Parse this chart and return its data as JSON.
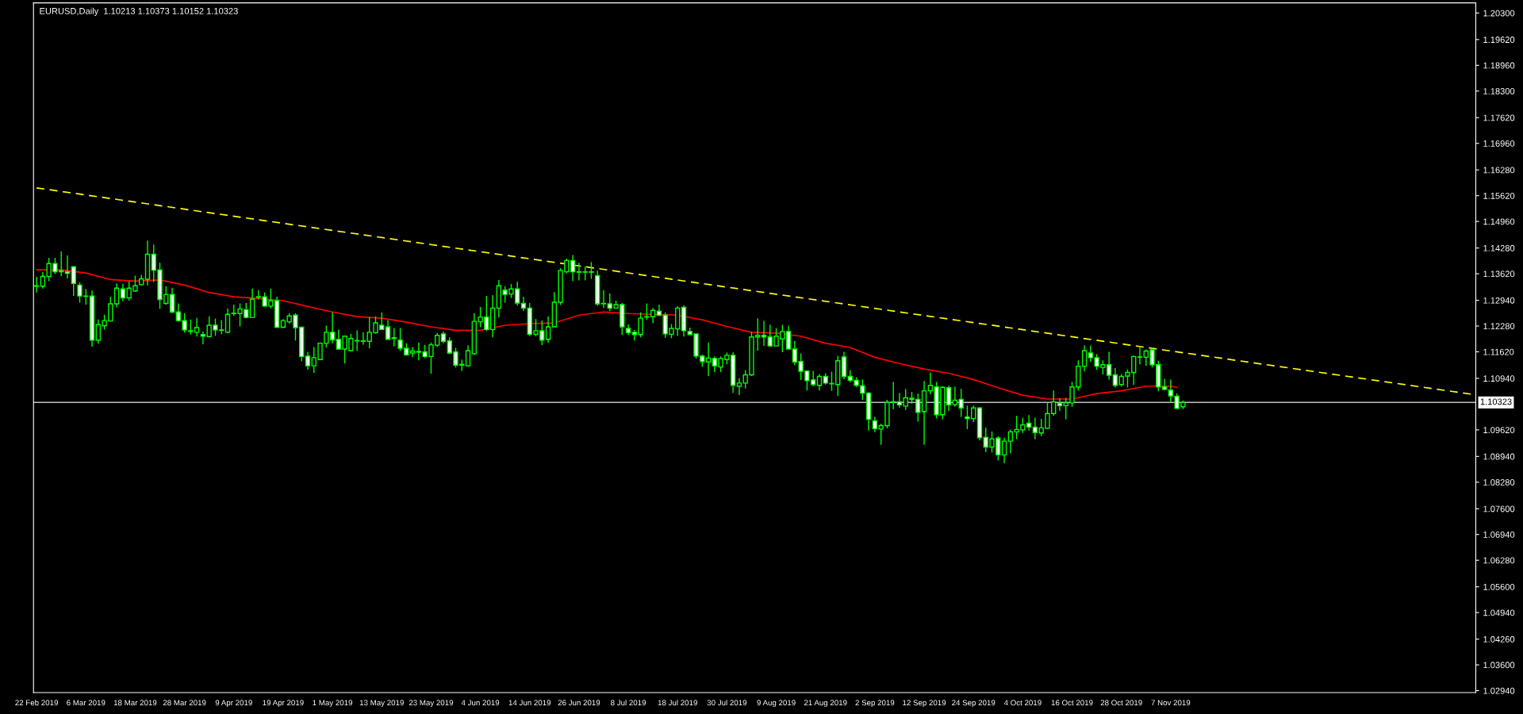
{
  "chart_data": {
    "type": "candlestick",
    "title": "EURUSD,Daily  1.10213 1.10373 1.10152 1.10323",
    "color": "#00ff00",
    "categories": [
      "22 Feb 2019",
      null,
      null,
      null,
      null,
      null,
      null,
      null,
      "6 Mar 2019",
      null,
      null,
      null,
      null,
      null,
      null,
      null,
      "18 Mar 2019",
      null,
      null,
      null,
      null,
      null,
      null,
      null,
      "28 Mar 2019",
      null,
      null,
      null,
      null,
      null,
      null,
      null,
      "9 Apr 2019",
      null,
      null,
      null,
      null,
      null,
      null,
      null,
      "19 Apr 2019",
      null,
      null,
      null,
      null,
      null,
      null,
      null,
      "1 May 2019",
      null,
      null,
      null,
      null,
      null,
      null,
      null,
      "13 May 2019",
      null,
      null,
      null,
      null,
      null,
      null,
      null,
      "23 May 2019",
      null,
      null,
      null,
      null,
      null,
      null,
      null,
      "4 Jun 2019",
      null,
      null,
      null,
      null,
      null,
      null,
      null,
      "14 Jun 2019",
      null,
      null,
      null,
      null,
      null,
      null,
      null,
      "26 Jun 2019",
      null,
      null,
      null,
      null,
      null,
      null,
      null,
      "8 Jul 2019",
      null,
      null,
      null,
      null,
      null,
      null,
      null,
      "18 Jul 2019",
      null,
      null,
      null,
      null,
      null,
      null,
      null,
      "30 Jul 2019",
      null,
      null,
      null,
      null,
      null,
      null,
      null,
      "9 Aug 2019",
      null,
      null,
      null,
      null,
      null,
      null,
      null,
      "21 Aug 2019",
      null,
      null,
      null,
      null,
      null,
      null,
      null,
      "2 Sep 2019",
      null,
      null,
      null,
      null,
      null,
      null,
      null,
      "12 Sep 2019",
      null,
      null,
      null,
      null,
      null,
      null,
      null,
      "24 Sep 2019",
      null,
      null,
      null,
      null,
      null,
      null,
      null,
      "4 Oct 2019",
      null,
      null,
      null,
      null,
      null,
      null,
      null,
      "16 Oct 2019",
      null,
      null,
      null,
      null,
      null,
      null,
      null,
      "28 Oct 2019",
      null,
      null,
      null,
      null,
      null,
      null,
      null,
      "7 Nov 2019",
      null,
      null,
      null,
      null,
      null,
      null,
      null,
      null,
      null,
      null,
      null,
      null,
      null,
      null,
      null,
      null,
      null,
      null,
      null,
      null,
      null,
      null,
      null,
      null,
      null,
      null,
      null,
      null,
      null,
      null,
      null,
      null,
      null,
      null,
      null,
      null,
      null,
      null,
      null,
      null,
      null,
      null,
      null,
      null,
      null,
      null,
      null,
      null,
      null
    ],
    "ohlc": [
      [
        1.133,
        1.1354,
        1.1314,
        1.1331
      ],
      [
        1.133,
        1.1366,
        1.1324,
        1.1355
      ],
      [
        1.1355,
        1.1403,
        1.1343,
        1.1388
      ],
      [
        1.1388,
        1.1403,
        1.1361,
        1.1367
      ],
      [
        1.137,
        1.1419,
        1.1356,
        1.1367
      ],
      [
        1.1367,
        1.1409,
        1.135,
        1.1363
      ],
      [
        1.138,
        1.1381,
        1.1305,
        1.1337
      ],
      [
        1.1333,
        1.134,
        1.1288,
        1.1305
      ],
      [
        1.1305,
        1.1323,
        1.1283,
        1.1304
      ],
      [
        1.1305,
        1.1319,
        1.1175,
        1.1192
      ],
      [
        1.1192,
        1.1245,
        1.1183,
        1.1232
      ],
      [
        1.1229,
        1.1257,
        1.1219,
        1.1242
      ],
      [
        1.1241,
        1.1303,
        1.1241,
        1.1285
      ],
      [
        1.1285,
        1.1337,
        1.1276,
        1.1325
      ],
      [
        1.1323,
        1.1336,
        1.1292,
        1.13
      ],
      [
        1.13,
        1.1343,
        1.1293,
        1.1325
      ],
      [
        1.1318,
        1.1357,
        1.1316,
        1.1331
      ],
      [
        1.1334,
        1.1359,
        1.1332,
        1.1349
      ],
      [
        1.1348,
        1.1447,
        1.1332,
        1.1412
      ],
      [
        1.1412,
        1.1437,
        1.1341,
        1.1371
      ],
      [
        1.1372,
        1.139,
        1.1272,
        1.1296
      ],
      [
        1.1286,
        1.133,
        1.1283,
        1.1309
      ],
      [
        1.1309,
        1.1326,
        1.1261,
        1.1264
      ],
      [
        1.1264,
        1.1286,
        1.1239,
        1.1242
      ],
      [
        1.1242,
        1.1261,
        1.1211,
        1.1218
      ],
      [
        1.1216,
        1.1245,
        1.1206,
        1.1214
      ],
      [
        1.1212,
        1.1249,
        1.1201,
        1.1224
      ],
      [
        1.1206,
        1.1214,
        1.1181,
        1.1202
      ],
      [
        1.1201,
        1.1253,
        1.1199,
        1.123
      ],
      [
        1.123,
        1.1247,
        1.1203,
        1.1218
      ],
      [
        1.1218,
        1.1243,
        1.1207,
        1.1217
      ],
      [
        1.1212,
        1.1273,
        1.1209,
        1.1258
      ],
      [
        1.126,
        1.1283,
        1.1254,
        1.1261
      ],
      [
        1.126,
        1.1286,
        1.1227,
        1.1272
      ],
      [
        1.127,
        1.1287,
        1.1248,
        1.125
      ],
      [
        1.125,
        1.1324,
        1.125,
        1.1297
      ],
      [
        1.1302,
        1.132,
        1.1296,
        1.1303
      ],
      [
        1.1303,
        1.1314,
        1.1279,
        1.1279
      ],
      [
        1.1279,
        1.1324,
        1.1273,
        1.1293
      ],
      [
        1.1293,
        1.1303,
        1.1223,
        1.1225
      ],
      [
        1.1225,
        1.1246,
        1.1223,
        1.1242
      ],
      [
        1.1239,
        1.1261,
        1.1234,
        1.1254
      ],
      [
        1.1256,
        1.1261,
        1.1191,
        1.1224
      ],
      [
        1.1225,
        1.1227,
        1.1138,
        1.115
      ],
      [
        1.1151,
        1.1162,
        1.1116,
        1.1126
      ],
      [
        1.1126,
        1.1174,
        1.1108,
        1.1147
      ],
      [
        1.1142,
        1.1186,
        1.1142,
        1.1184
      ],
      [
        1.1184,
        1.1229,
        1.1173,
        1.1212
      ],
      [
        1.1212,
        1.1263,
        1.1184,
        1.1193
      ],
      [
        1.1194,
        1.1219,
        1.1169,
        1.1169
      ],
      [
        1.1169,
        1.1204,
        1.1132,
        1.1202
      ],
      [
        1.1165,
        1.1208,
        1.1163,
        1.1196
      ],
      [
        1.119,
        1.1217,
        1.1165,
        1.1191
      ],
      [
        1.1189,
        1.1212,
        1.118,
        1.119
      ],
      [
        1.1189,
        1.1251,
        1.1171,
        1.1212
      ],
      [
        1.1211,
        1.1253,
        1.1208,
        1.1236
      ],
      [
        1.123,
        1.1263,
        1.1219,
        1.1219
      ],
      [
        1.1226,
        1.1243,
        1.1194,
        1.1194
      ],
      [
        1.1198,
        1.1223,
        1.1176,
        1.1196
      ],
      [
        1.1192,
        1.1223,
        1.1165,
        1.1171
      ],
      [
        1.1171,
        1.1184,
        1.1152,
        1.1154
      ],
      [
        1.1159,
        1.1174,
        1.1148,
        1.1164
      ],
      [
        1.1161,
        1.1186,
        1.114,
        1.1163
      ],
      [
        1.1162,
        1.118,
        1.1146,
        1.115
      ],
      [
        1.115,
        1.1186,
        1.1106,
        1.118
      ],
      [
        1.1179,
        1.121,
        1.1174,
        1.1204
      ],
      [
        1.1208,
        1.1214,
        1.1184,
        1.1189
      ],
      [
        1.119,
        1.1199,
        1.1156,
        1.1159
      ],
      [
        1.1162,
        1.1172,
        1.1122,
        1.1128
      ],
      [
        1.113,
        1.1142,
        1.1113,
        1.1128
      ],
      [
        1.1126,
        1.1178,
        1.1124,
        1.1165
      ],
      [
        1.1157,
        1.1261,
        1.1154,
        1.124
      ],
      [
        1.1239,
        1.1277,
        1.1225,
        1.1251
      ],
      [
        1.1251,
        1.1305,
        1.1215,
        1.1219
      ],
      [
        1.1219,
        1.1307,
        1.1199,
        1.1274
      ],
      [
        1.1274,
        1.1346,
        1.125,
        1.1331
      ],
      [
        1.132,
        1.133,
        1.1288,
        1.1309
      ],
      [
        1.131,
        1.1336,
        1.13,
        1.1323
      ],
      [
        1.1323,
        1.1342,
        1.1281,
        1.1287
      ],
      [
        1.1286,
        1.1303,
        1.1266,
        1.1274
      ],
      [
        1.1274,
        1.1287,
        1.1202,
        1.1207
      ],
      [
        1.1207,
        1.1246,
        1.1202,
        1.1216
      ],
      [
        1.1216,
        1.1242,
        1.1179,
        1.1192
      ],
      [
        1.1194,
        1.1253,
        1.1185,
        1.1226
      ],
      [
        1.1226,
        1.1315,
        1.1226,
        1.1289
      ],
      [
        1.1289,
        1.1376,
        1.1282,
        1.137
      ],
      [
        1.1367,
        1.1401,
        1.1363,
        1.1396
      ],
      [
        1.1396,
        1.141,
        1.1343,
        1.1367
      ],
      [
        1.1367,
        1.139,
        1.1345,
        1.1366
      ],
      [
        1.1366,
        1.1381,
        1.1345,
        1.1367
      ],
      [
        1.1367,
        1.1392,
        1.1349,
        1.1366
      ],
      [
        1.1357,
        1.137,
        1.128,
        1.1285
      ],
      [
        1.1286,
        1.132,
        1.1274,
        1.1285
      ],
      [
        1.1285,
        1.1312,
        1.1266,
        1.1274
      ],
      [
        1.1274,
        1.1293,
        1.1272,
        1.1283
      ],
      [
        1.1283,
        1.1287,
        1.1205,
        1.1226
      ],
      [
        1.1222,
        1.1232,
        1.1205,
        1.1211
      ],
      [
        1.1212,
        1.1218,
        1.1191,
        1.1206
      ],
      [
        1.1206,
        1.1263,
        1.1199,
        1.1248
      ],
      [
        1.1252,
        1.1286,
        1.1244,
        1.1251
      ],
      [
        1.1252,
        1.1274,
        1.1235,
        1.1268
      ],
      [
        1.1266,
        1.1283,
        1.1253,
        1.1256
      ],
      [
        1.1256,
        1.1263,
        1.1198,
        1.1208
      ],
      [
        1.1207,
        1.1233,
        1.1197,
        1.1222
      ],
      [
        1.1221,
        1.1279,
        1.1203,
        1.1274
      ],
      [
        1.1276,
        1.1281,
        1.1201,
        1.1216
      ],
      [
        1.1214,
        1.1224,
        1.1205,
        1.1206
      ],
      [
        1.1208,
        1.1208,
        1.1145,
        1.1151
      ],
      [
        1.1151,
        1.1155,
        1.1124,
        1.1137
      ],
      [
        1.1136,
        1.1186,
        1.11,
        1.1146
      ],
      [
        1.1145,
        1.115,
        1.111,
        1.1126
      ],
      [
        1.1123,
        1.115,
        1.111,
        1.1145
      ],
      [
        1.1142,
        1.116,
        1.113,
        1.1153
      ],
      [
        1.1153,
        1.1161,
        1.1057,
        1.1076
      ],
      [
        1.1074,
        1.1095,
        1.1051,
        1.1082
      ],
      [
        1.1082,
        1.1115,
        1.1068,
        1.1103
      ],
      [
        1.1103,
        1.1213,
        1.11,
        1.12
      ],
      [
        1.12,
        1.1248,
        1.1165,
        1.1204
      ],
      [
        1.1204,
        1.1241,
        1.1177,
        1.12
      ],
      [
        1.12,
        1.1231,
        1.1175,
        1.1177
      ],
      [
        1.1177,
        1.1223,
        1.1177,
        1.1202
      ],
      [
        1.1195,
        1.1231,
        1.1161,
        1.1214
      ],
      [
        1.1214,
        1.1229,
        1.1169,
        1.1169
      ],
      [
        1.1169,
        1.119,
        1.1128,
        1.1136
      ],
      [
        1.1137,
        1.1158,
        1.109,
        1.1112
      ],
      [
        1.1113,
        1.1113,
        1.1063,
        1.1088
      ],
      [
        1.109,
        1.1113,
        1.1074,
        1.1078
      ],
      [
        1.1076,
        1.1105,
        1.1063,
        1.1099
      ],
      [
        1.1099,
        1.1107,
        1.1078,
        1.1082
      ],
      [
        1.1081,
        1.1111,
        1.1062,
        1.108
      ],
      [
        1.1078,
        1.1152,
        1.1049,
        1.1139
      ],
      [
        1.1149,
        1.1162,
        1.1092,
        1.1099
      ],
      [
        1.1099,
        1.1115,
        1.1084,
        1.1089
      ],
      [
        1.1089,
        1.1097,
        1.1072,
        1.1076
      ],
      [
        1.1075,
        1.1091,
        1.1039,
        1.1056
      ],
      [
        1.1056,
        1.1059,
        1.096,
        1.0989
      ],
      [
        1.0985,
        1.0996,
        1.0956,
        1.0965
      ],
      [
        1.0964,
        1.0978,
        1.0924,
        1.0973
      ],
      [
        1.0973,
        1.1039,
        1.0966,
        1.1032
      ],
      [
        1.1033,
        1.1085,
        1.1015,
        1.1034
      ],
      [
        1.1034,
        1.1057,
        1.1019,
        1.1026
      ],
      [
        1.1023,
        1.1067,
        1.1013,
        1.1044
      ],
      [
        1.1043,
        1.1059,
        1.1029,
        1.104
      ],
      [
        1.104,
        1.1055,
        1.0983,
        1.1007
      ],
      [
        1.1009,
        1.1087,
        1.0924,
        1.1062
      ],
      [
        1.1062,
        1.1109,
        1.1053,
        1.1076
      ],
      [
        1.1072,
        1.1085,
        1.0991,
        1.1001
      ],
      [
        1.1001,
        1.1074,
        1.0989,
        1.1071
      ],
      [
        1.107,
        1.1075,
        1.101,
        1.1026
      ],
      [
        1.1027,
        1.1073,
        1.1021,
        1.1038
      ],
      [
        1.104,
        1.1067,
        1.0995,
        1.1018
      ],
      [
        1.0995,
        1.1024,
        1.0964,
        1.0991
      ],
      [
        1.0991,
        1.1024,
        1.0982,
        1.1018
      ],
      [
        1.1018,
        1.102,
        1.0936,
        1.0942
      ],
      [
        1.0943,
        1.0968,
        1.0905,
        1.0918
      ],
      [
        1.0918,
        1.0958,
        1.0904,
        1.0939
      ],
      [
        1.0941,
        1.0946,
        1.0884,
        1.0898
      ],
      [
        1.0898,
        1.0942,
        1.0877,
        1.0933
      ],
      [
        1.0933,
        1.0963,
        1.0902,
        1.0957
      ],
      [
        1.0957,
        1.0998,
        1.0938,
        1.0963
      ],
      [
        1.0962,
        1.0993,
        1.0954,
        1.0975
      ],
      [
        1.0979,
        1.1,
        1.096,
        1.0969
      ],
      [
        1.0969,
        1.0993,
        1.0938,
        1.0955
      ],
      [
        1.0954,
        1.099,
        1.0946,
        1.0967
      ],
      [
        1.0966,
        1.1032,
        1.0964,
        1.1004
      ],
      [
        1.1004,
        1.1063,
        1.0998,
        1.1034
      ],
      [
        1.103,
        1.1043,
        1.1011,
        1.1024
      ],
      [
        1.1024,
        1.1044,
        1.0989,
        1.1031
      ],
      [
        1.1031,
        1.1085,
        1.1021,
        1.1072
      ],
      [
        1.1072,
        1.114,
        1.1063,
        1.1125
      ],
      [
        1.1125,
        1.1178,
        1.1112,
        1.1165
      ],
      [
        1.1159,
        1.1178,
        1.1136,
        1.1147
      ],
      [
        1.1147,
        1.1156,
        1.1116,
        1.1125
      ],
      [
        1.1122,
        1.114,
        1.1104,
        1.1129
      ],
      [
        1.1129,
        1.1162,
        1.1091,
        1.1102
      ],
      [
        1.1103,
        1.1121,
        1.1071,
        1.1076
      ],
      [
        1.1078,
        1.1105,
        1.1073,
        1.1099
      ],
      [
        1.11,
        1.1117,
        1.1071,
        1.1109
      ],
      [
        1.1109,
        1.1152,
        1.1077,
        1.115
      ],
      [
        1.1148,
        1.1174,
        1.113,
        1.1149
      ],
      [
        1.1148,
        1.1168,
        1.1126,
        1.1164
      ],
      [
        1.1167,
        1.1172,
        1.1122,
        1.1129
      ],
      [
        1.1129,
        1.1139,
        1.1061,
        1.1072
      ],
      [
        1.1072,
        1.1093,
        1.1063,
        1.1066
      ],
      [
        1.1064,
        1.1091,
        1.1033,
        1.1049
      ],
      [
        1.1048,
        1.1055,
        1.1015,
        1.1017
      ],
      [
        1.10213,
        1.10373,
        1.10152,
        1.10323
      ],
      null,
      null,
      null,
      null,
      null,
      null,
      null,
      null,
      null,
      null,
      null,
      null,
      null,
      null,
      null,
      null,
      null,
      null,
      null,
      null,
      null,
      null,
      null,
      null,
      null,
      null,
      null,
      null,
      null,
      null,
      null,
      null,
      null,
      null,
      null,
      null,
      null,
      null,
      null,
      null,
      null,
      null,
      null,
      null,
      null,
      null,
      null
    ],
    "series": [
      {
        "type": "line",
        "color": "#ff0000",
        "values": [
          1.1372,
          null,
          null,
          null,
          1.1372,
          null,
          null,
          null,
          1.1364,
          null,
          null,
          null,
          1.1347,
          null,
          null,
          null,
          1.1343,
          null,
          null,
          null,
          1.1346,
          null,
          null,
          null,
          1.1333,
          null,
          null,
          null,
          1.1314,
          null,
          null,
          null,
          1.1303,
          null,
          null,
          null,
          1.1299,
          null,
          null,
          null,
          1.1293,
          null,
          null,
          null,
          1.1278,
          null,
          null,
          null,
          1.1264,
          null,
          null,
          null,
          1.1252,
          null,
          null,
          null,
          1.1248,
          null,
          null,
          null,
          1.1238,
          null,
          null,
          null,
          1.1226,
          null,
          null,
          null,
          1.1217,
          null,
          null,
          null,
          1.1217,
          null,
          null,
          null,
          1.123,
          null,
          null,
          null,
          1.1234,
          null,
          null,
          null,
          1.1236,
          null,
          null,
          null,
          1.1256,
          null,
          null,
          null,
          1.1264,
          null,
          null,
          null,
          1.126,
          null,
          null,
          null,
          1.1258,
          null,
          null,
          null,
          1.1256,
          null,
          null,
          null,
          1.1244,
          null,
          null,
          null,
          1.1227,
          null,
          null,
          null,
          1.1212,
          null,
          null,
          null,
          1.121,
          null,
          null,
          null,
          1.1202,
          null,
          null,
          null,
          1.1184,
          null,
          null,
          null,
          1.1173,
          null,
          null,
          null,
          1.1148,
          null,
          null,
          null,
          1.1132,
          null,
          null,
          null,
          1.1118,
          null,
          null,
          null,
          1.1107,
          null,
          null,
          null,
          1.1091,
          null,
          null,
          null,
          1.107,
          null,
          null,
          null,
          1.1051,
          null,
          null,
          null,
          1.1041,
          null,
          null,
          null,
          1.1041,
          null,
          null,
          null,
          1.1055,
          null,
          null,
          null,
          1.1062,
          null,
          null,
          null,
          1.1074,
          null,
          null,
          null,
          1.1074,
          1.1071,
          null,
          null,
          null,
          null,
          null,
          null,
          null,
          null,
          null,
          null,
          null,
          null,
          null,
          null,
          null,
          null,
          null,
          null,
          null,
          null,
          null,
          null,
          null,
          null,
          null,
          null,
          null,
          null,
          null,
          null,
          null,
          null,
          null,
          null,
          null,
          null,
          null,
          null,
          null,
          null,
          null,
          null,
          null,
          null,
          null,
          null,
          null,
          null
        ]
      },
      {
        "type": "line",
        "color": "#ffff00",
        "line_style": "dashed",
        "values": [
          1.1582,
          null,
          null,
          null,
          null,
          null,
          null,
          null,
          null,
          null,
          null,
          null,
          null,
          null,
          null,
          null,
          null,
          null,
          null,
          null,
          null,
          null,
          null,
          null,
          null,
          null,
          null,
          null,
          null,
          null,
          null,
          null,
          null,
          null,
          null,
          null,
          null,
          null,
          null,
          null,
          null,
          null,
          null,
          null,
          null,
          null,
          null,
          null,
          null,
          null,
          null,
          null,
          null,
          null,
          null,
          null,
          null,
          null,
          null,
          null,
          null,
          null,
          null,
          null,
          null,
          null,
          null,
          null,
          null,
          null,
          null,
          null,
          null,
          null,
          null,
          null,
          null,
          null,
          null,
          null,
          null,
          null,
          null,
          null,
          null,
          null,
          null,
          null,
          null,
          null,
          null,
          null,
          null,
          null,
          null,
          null,
          null,
          null,
          null,
          null,
          null,
          null,
          null,
          null,
          null,
          null,
          null,
          null,
          null,
          null,
          null,
          null,
          null,
          null,
          null,
          null,
          null,
          null,
          null,
          null,
          null,
          null,
          null,
          null,
          null,
          null,
          null,
          null,
          null,
          null,
          null,
          null,
          null,
          null,
          null,
          null,
          null,
          null,
          null,
          null,
          null,
          null,
          null,
          null,
          null,
          null,
          null,
          null,
          null,
          null,
          null,
          null,
          null,
          null,
          null,
          null,
          null,
          null,
          null,
          null,
          null,
          null,
          null,
          null,
          null,
          null,
          null,
          null,
          null,
          null,
          null,
          null,
          null,
          null,
          null,
          null,
          null,
          null,
          null,
          null,
          null,
          null,
          null,
          null,
          null,
          null,
          null,
          null,
          null,
          null,
          null,
          null,
          null,
          null,
          null,
          null,
          null,
          null,
          null,
          null,
          null,
          null,
          null,
          null,
          null,
          null,
          null,
          null,
          null,
          null,
          null,
          null,
          null,
          null,
          null,
          null,
          null,
          null,
          null,
          null,
          null,
          null,
          null,
          null,
          null,
          null,
          null,
          null,
          null,
          null,
          null,
          null,
          null,
          1.1053
        ]
      }
    ],
    "ref_lines": [
      {
        "axis": "y",
        "value": 1.10323,
        "label": "1.10323",
        "color": "#c0c0c0"
      }
    ],
    "ylim": [
      1.0289,
      1.2056
    ],
    "yticks": [
      {
        "value": 1.203,
        "label": "1.20300"
      },
      {
        "value": 1.1962,
        "label": "1.19620"
      },
      {
        "value": 1.1896,
        "label": "1.18960"
      },
      {
        "value": 1.183,
        "label": "1.18300"
      },
      {
        "value": 1.1762,
        "label": "1.17620"
      },
      {
        "value": 1.1696,
        "label": "1.16960"
      },
      {
        "value": 1.1628,
        "label": "1.16280"
      },
      {
        "value": 1.1562,
        "label": "1.15620"
      },
      {
        "value": 1.1496,
        "label": "1.14960"
      },
      {
        "value": 1.1428,
        "label": "1.14280"
      },
      {
        "value": 1.1362,
        "label": "1.13620"
      },
      {
        "value": 1.1294,
        "label": "1.12940"
      },
      {
        "value": 1.1228,
        "label": "1.12280"
      },
      {
        "value": 1.1162,
        "label": "1.11620"
      },
      {
        "value": 1.1094,
        "label": "1.10940"
      },
      {
        "value": 1.0962,
        "label": "1.09620"
      },
      {
        "value": 1.0894,
        "label": "1.08940"
      },
      {
        "value": 1.0828,
        "label": "1.08280"
      },
      {
        "value": 1.076,
        "label": "1.07600"
      },
      {
        "value": 1.0694,
        "label": "1.06940"
      },
      {
        "value": 1.0628,
        "label": "1.06280"
      },
      {
        "value": 1.056,
        "label": "1.05600"
      },
      {
        "value": 1.0494,
        "label": "1.04940"
      },
      {
        "value": 1.0426,
        "label": "1.04260"
      },
      {
        "value": 1.036,
        "label": "1.03600"
      },
      {
        "value": 1.0294,
        "label": "1.02940"
      }
    ]
  }
}
